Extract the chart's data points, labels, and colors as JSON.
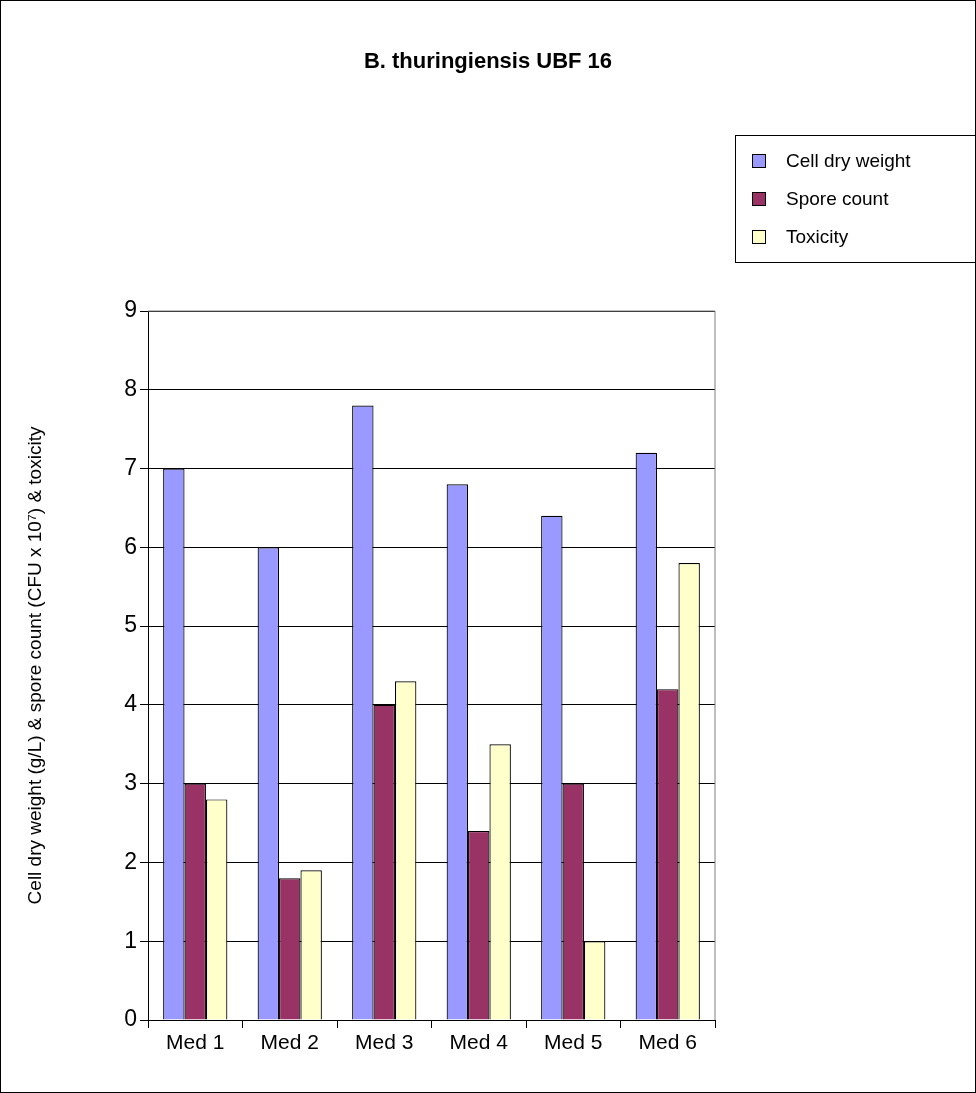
{
  "chart_data": {
    "type": "bar",
    "title": "B. thuringiensis UBF 16",
    "ylabel": "Cell dry weight (g/L) & spore count (CFU x 10⁷) & toxicity",
    "categories": [
      "Med 1",
      "Med 2",
      "Med 3",
      "Med 4",
      "Med 5",
      "Med 6"
    ],
    "series": [
      {
        "name": "Cell dry weight",
        "color": "#9999ff",
        "values": [
          7,
          6,
          7.8,
          6.8,
          6.4,
          7.2
        ]
      },
      {
        "name": "Spore count",
        "color": "#993366",
        "values": [
          3,
          1.8,
          4,
          2.4,
          3,
          4.2
        ]
      },
      {
        "name": "Toxicity",
        "color": "#ffffcc",
        "values": [
          2.8,
          1.9,
          4.3,
          3.5,
          1,
          5.8
        ]
      }
    ],
    "ylim": [
      0,
      9
    ],
    "yticks": [
      0,
      1,
      2,
      3,
      4,
      5,
      6,
      7,
      8,
      9
    ],
    "grid": "y",
    "legend": "top right"
  }
}
